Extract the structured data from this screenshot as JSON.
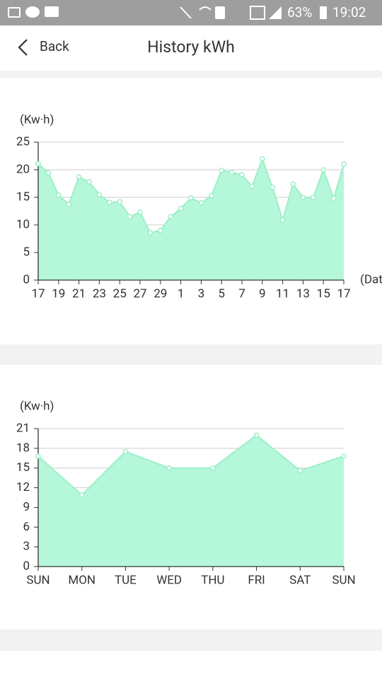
{
  "status_bar": {
    "battery": "63%",
    "time": "19:02"
  },
  "header": {
    "back": "Back",
    "title": "History kWh"
  },
  "chart_data": [
    {
      "type": "area",
      "y_label": "(Kw·h)",
      "x_label": "(Date)",
      "color": "#b5f7da",
      "line_color": "#9defc8",
      "categories": [
        "17",
        null,
        "19",
        null,
        "21",
        null,
        "23",
        null,
        "25",
        null,
        "27",
        null,
        "29",
        null,
        "1",
        null,
        "3",
        null,
        "5",
        null,
        "7",
        null,
        "9",
        null,
        "11",
        null,
        "13",
        null,
        "15",
        null,
        "17"
      ],
      "values": [
        21.1,
        19.4,
        15.4,
        13.7,
        18.7,
        17.8,
        15.5,
        14.1,
        14.2,
        11.5,
        12.3,
        8.6,
        9,
        11.5,
        13,
        14.9,
        14,
        15.3,
        19.9,
        19.5,
        19.1,
        17,
        22,
        16.8,
        10.9,
        17.4,
        15,
        15,
        20,
        14.8,
        21
      ],
      "ylim": [
        0,
        25
      ],
      "yticks": [
        0,
        5,
        10,
        15,
        20,
        25
      ],
      "grid": true
    },
    {
      "type": "area",
      "y_label": "(Kw·h)",
      "color": "#b5f7da",
      "line_color": "#9defc8",
      "categories": [
        "SUN",
        "MON",
        "TUE",
        "WED",
        "THU",
        "FRI",
        "SAT",
        "SUN"
      ],
      "values": [
        16.8,
        10.9,
        17.5,
        15,
        15,
        20,
        14.6,
        16.8
      ],
      "ylim": [
        0,
        21
      ],
      "yticks": [
        0,
        3,
        6,
        9,
        12,
        15,
        18,
        21
      ],
      "grid": true
    }
  ]
}
